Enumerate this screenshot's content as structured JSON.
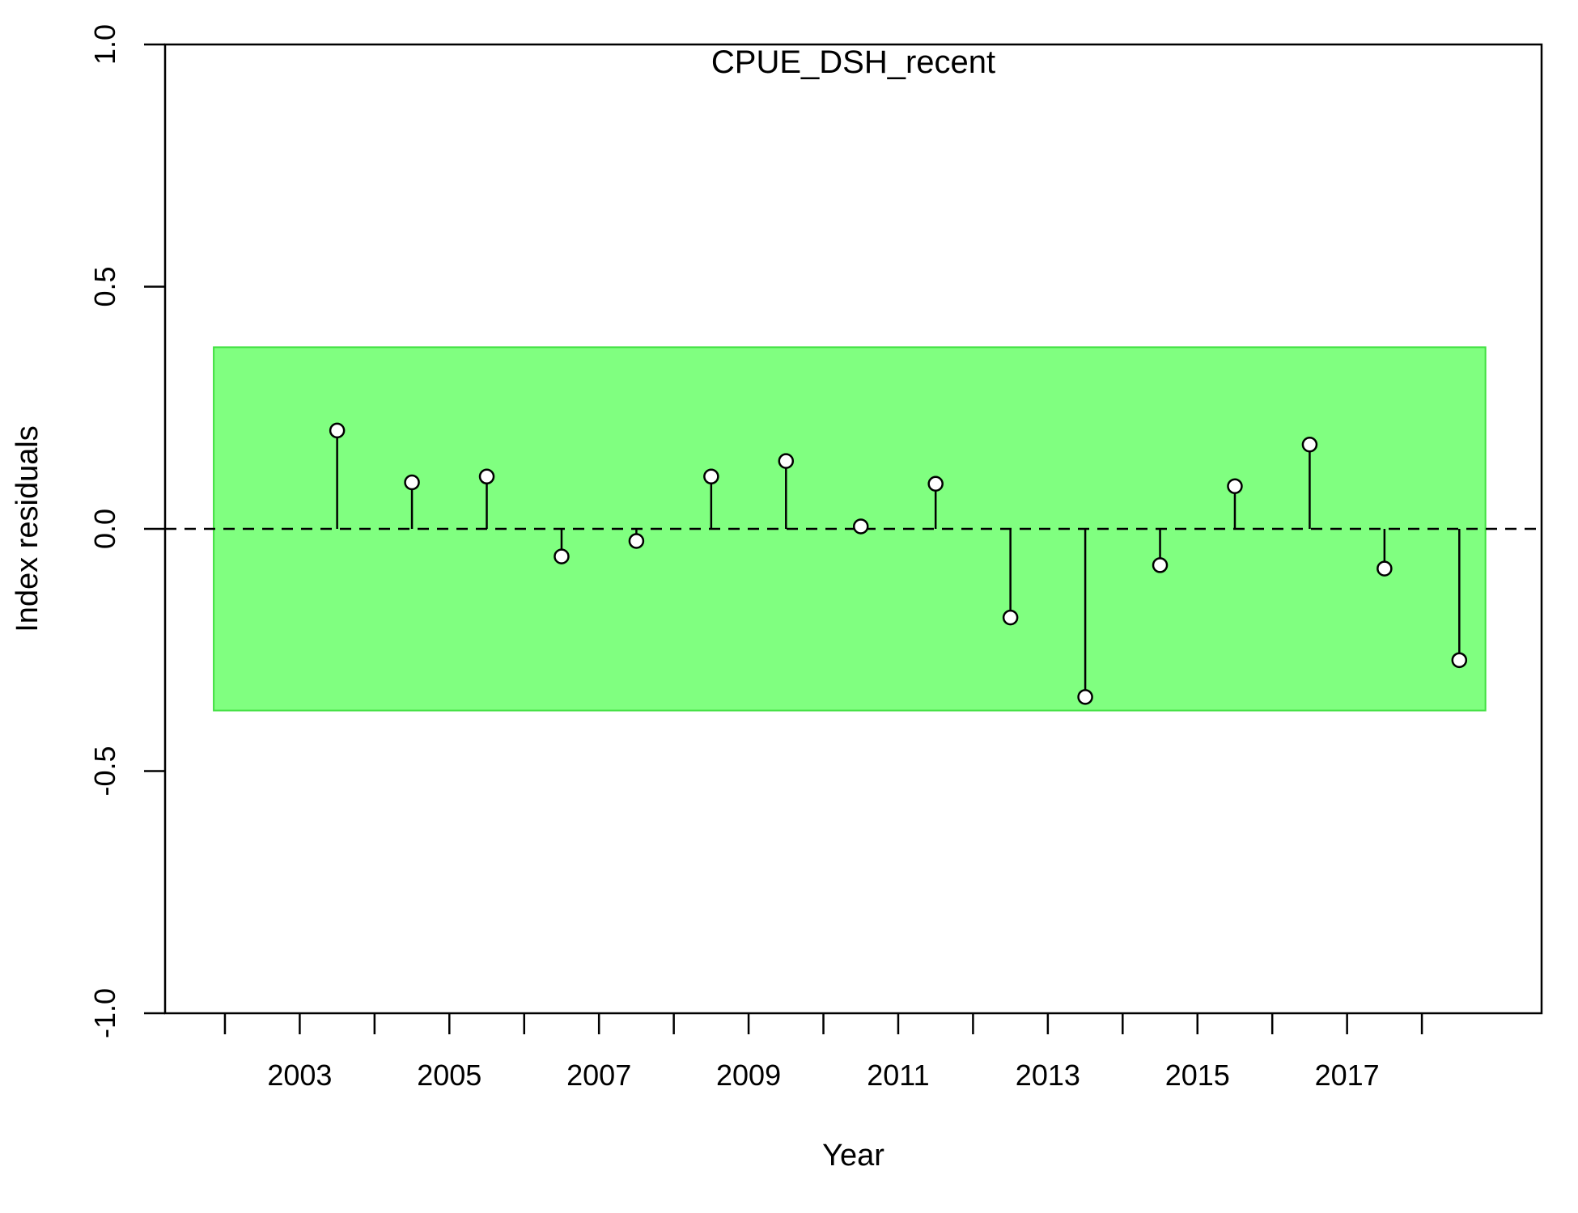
{
  "chart_data": {
    "type": "scatter",
    "title": "CPUE_DSH_recent",
    "xlabel": "Year",
    "ylabel": "Index residuals",
    "xlim": [
      2001.2,
      2019.6
    ],
    "ylim": [
      -1.0,
      1.0
    ],
    "x_ticks": [
      2002,
      2003,
      2004,
      2005,
      2006,
      2007,
      2008,
      2009,
      2010,
      2011,
      2012,
      2013,
      2014,
      2015,
      2016,
      2017,
      2018
    ],
    "x_tick_labels": [
      "2003",
      "2005",
      "2007",
      "2009",
      "2011",
      "2013",
      "2015",
      "2017"
    ],
    "y_ticks": [
      -1.0,
      -0.5,
      0.0,
      0.5,
      1.0
    ],
    "y_tick_labels": [
      "-1.0",
      "-0.5",
      "0.0",
      "0.5",
      "1.0"
    ],
    "band": {
      "ymin": -0.375,
      "ymax": 0.375,
      "xmin": 2001.85,
      "xmax": 2018.85,
      "color": "#80FF80",
      "edge": "#40E040"
    },
    "reference_line": {
      "y": 0.0,
      "style": "dashed"
    },
    "x": [
      2003.5,
      2004.5,
      2005.5,
      2006.5,
      2007.5,
      2008.5,
      2009.5,
      2010.5,
      2011.5,
      2012.5,
      2013.5,
      2014.5,
      2015.5,
      2016.5,
      2017.5,
      2018.5
    ],
    "residuals": [
      0.203,
      0.096,
      0.108,
      -0.057,
      -0.025,
      0.108,
      0.14,
      0.005,
      0.093,
      -0.183,
      -0.347,
      -0.075,
      0.088,
      0.174,
      -0.082,
      -0.271
    ],
    "colors": {
      "point_fill": "#FFFFFF",
      "point_edge": "#000000",
      "stem": "#000000"
    }
  }
}
